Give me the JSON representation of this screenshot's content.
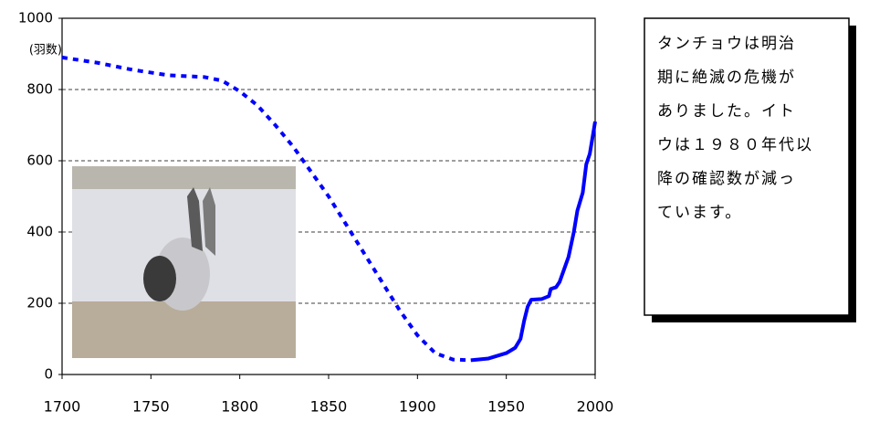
{
  "chart_data": {
    "type": "line",
    "y_label": "(羽数)",
    "xlim": [
      1700,
      2000
    ],
    "xticks": [
      1700,
      1750,
      1800,
      1850,
      1900,
      1950,
      2000
    ],
    "ylim": [
      0,
      1000
    ],
    "yticks": [
      0,
      200,
      400,
      600,
      800,
      1000
    ],
    "grid": true,
    "series": [
      {
        "color": "#0000ff",
        "style": "dotted",
        "x": [
          1700,
          1720,
          1740,
          1760,
          1780,
          1790,
          1800,
          1810,
          1820,
          1830,
          1840,
          1850,
          1860,
          1870,
          1880,
          1890,
          1900,
          1910,
          1920,
          1930
        ],
        "values": [
          890,
          875,
          855,
          840,
          835,
          825,
          795,
          755,
          700,
          640,
          570,
          500,
          420,
          340,
          260,
          180,
          110,
          60,
          42,
          40
        ]
      },
      {
        "color": "#0000ff",
        "style": "solid",
        "x": [
          1930,
          1940,
          1950,
          1955,
          1958,
          1960,
          1962,
          1964,
          1970,
          1974,
          1975,
          1978,
          1980,
          1985,
          1988,
          1990,
          1993,
          1995,
          1997,
          1999,
          2000
        ],
        "values": [
          40,
          45,
          60,
          75,
          100,
          150,
          190,
          210,
          212,
          220,
          240,
          245,
          260,
          330,
          400,
          460,
          510,
          590,
          620,
          680,
          710
        ]
      }
    ]
  },
  "text_box": {
    "lines": [
      "タンチョウは明治",
      "期に絶滅の危機が",
      "ありました。イト",
      "ウは１９８０年代以",
      "降の確認数が減っ",
      "ています。"
    ]
  }
}
